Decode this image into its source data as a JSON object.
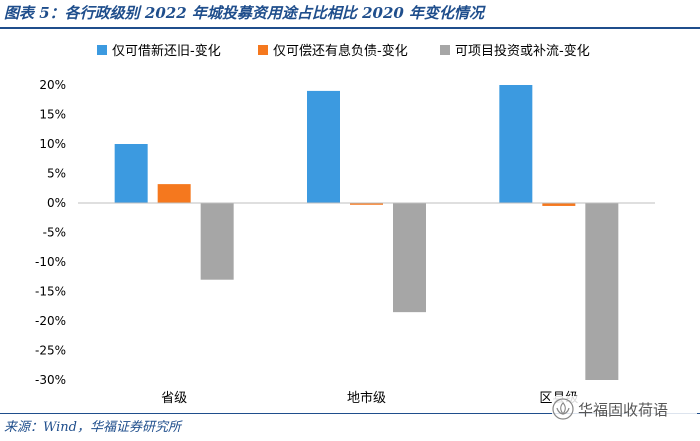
{
  "header": {
    "title": "图表 5：各行政级别 2022 年城投募资用途占比相比 2020 年变化情况"
  },
  "footer": {
    "source": "来源：Wind，华福证券研究所"
  },
  "watermark": {
    "text": "华福固收荷语"
  },
  "colors": {
    "series1": "#3c9ae0",
    "series2": "#f5781e",
    "series3": "#a6a6a6",
    "axis": "#bfbfbf",
    "text": "#000000",
    "title": "#1f4e8c"
  },
  "chart_data": {
    "type": "bar",
    "title": "各行政级别 2022 年城投募资用途占比相比 2020 年变化情况",
    "categories": [
      "省级",
      "地市级",
      "区县级"
    ],
    "series": [
      {
        "name": "仅可借新还旧-变化",
        "values": [
          10,
          19,
          20
        ]
      },
      {
        "name": "仅可偿还有息负债-变化",
        "values": [
          3.2,
          -0.3,
          -0.5
        ]
      },
      {
        "name": "可项目投资或补流-变化",
        "values": [
          -13,
          -18.5,
          -30
        ]
      }
    ],
    "ylim": [
      -30,
      20
    ],
    "yticks": [
      20,
      15,
      10,
      5,
      0,
      -5,
      -10,
      -15,
      -20,
      -25,
      -30
    ],
    "ytick_labels": [
      "20%",
      "15%",
      "10%",
      "5%",
      "0%",
      "-5%",
      "-10%",
      "-15%",
      "-20%",
      "-25%",
      "-30%"
    ],
    "xlabel": "",
    "ylabel": "",
    "legend_position": "top",
    "grid": false
  }
}
